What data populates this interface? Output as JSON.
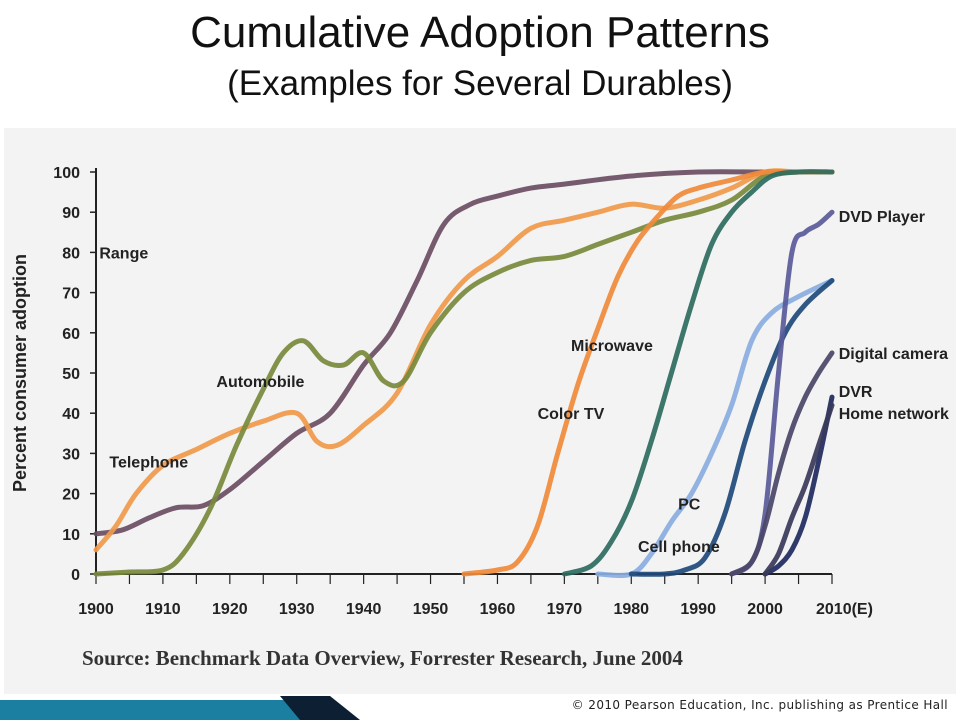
{
  "slide": {
    "title": "Cumulative Adoption Patterns",
    "subtitle": "(Examples for Several Durables)",
    "source": "Source: Benchmark Data Overview, Forrester Research, June 2004",
    "copyright": "© 2010 Pearson Education, Inc. publishing as Prentice Hall"
  },
  "colors": {
    "accent_teal": "#1a7fa0",
    "dark_navy": "#0d1f33"
  },
  "chart_data": {
    "type": "line",
    "title": "",
    "xlabel": "",
    "ylabel": "Percent consumer adoption",
    "xlim": [
      1900,
      2010
    ],
    "ylim": [
      0,
      100
    ],
    "grid": false,
    "x_ticks": [
      1900,
      1910,
      1920,
      1930,
      1940,
      1950,
      1960,
      1970,
      1980,
      1990,
      2000,
      2010
    ],
    "x_tick_labels": [
      "1900",
      "1910",
      "1920",
      "1930",
      "1940",
      "1950",
      "1960",
      "1970",
      "1980",
      "1990",
      "2000",
      "2010(E)"
    ],
    "y_ticks": [
      0,
      10,
      20,
      30,
      40,
      50,
      60,
      70,
      80,
      90,
      100
    ],
    "y_tick_labels": [
      "0",
      "10",
      "20",
      "30",
      "40",
      "50",
      "60",
      "70",
      "80",
      "90",
      "100"
    ],
    "series": [
      {
        "name": "Range",
        "color": "#6b4e64",
        "label_at": [
          1900.5,
          80
        ],
        "label_anchor": "start",
        "x": [
          1900,
          1904,
          1908,
          1912,
          1916,
          1920,
          1925,
          1930,
          1935,
          1940,
          1944,
          1948,
          1952,
          1956,
          1960,
          1965,
          1970,
          1980,
          1990,
          2000,
          2010
        ],
        "y": [
          10,
          11,
          14,
          16.5,
          17,
          21,
          28,
          35,
          40,
          52,
          60,
          73,
          87,
          92,
          94,
          96,
          97,
          99,
          100,
          100,
          100
        ]
      },
      {
        "name": "Telephone",
        "color": "#f09a4a",
        "label_at": [
          1902,
          28
        ],
        "label_anchor": "start",
        "x": [
          1900,
          1903,
          1906,
          1910,
          1915,
          1920,
          1925,
          1930,
          1933,
          1936,
          1940,
          1945,
          1950,
          1955,
          1960,
          1965,
          1970,
          1975,
          1980,
          1985,
          1990,
          1995,
          2000,
          2005,
          2010
        ],
        "y": [
          6,
          12,
          20,
          27,
          31,
          35,
          38,
          40,
          33,
          32,
          37,
          45,
          62,
          73,
          79,
          86,
          88,
          90,
          92,
          91,
          93,
          96,
          100,
          100,
          100
        ]
      },
      {
        "name": "Automobile",
        "color": "#7a8a3c",
        "label_at": [
          1918,
          48
        ],
        "label_anchor": "start",
        "x": [
          1900,
          1905,
          1910,
          1913,
          1917,
          1921,
          1925,
          1928,
          1931,
          1934,
          1937,
          1940,
          1943,
          1946,
          1950,
          1955,
          1960,
          1965,
          1970,
          1975,
          1980,
          1985,
          1990,
          1995,
          2000,
          2005,
          2010
        ],
        "y": [
          0,
          0.5,
          1,
          5,
          16,
          32,
          46,
          55,
          58,
          53,
          52,
          55,
          48,
          48,
          60,
          70,
          75,
          78,
          79,
          82,
          85,
          88,
          90,
          93,
          99,
          100,
          100
        ]
      },
      {
        "name": "Color TV",
        "color": "#f08a3a",
        "label_at": [
          1966,
          40
        ],
        "label_anchor": "start",
        "x": [
          1955,
          1960,
          1963,
          1966,
          1969,
          1972,
          1975,
          1978,
          1981,
          1984,
          1987,
          1990,
          1995,
          2000,
          2005,
          2010
        ],
        "y": [
          0,
          1,
          3,
          12,
          30,
          47,
          61,
          74,
          83,
          89,
          94,
          96,
          98,
          100,
          100,
          100
        ]
      },
      {
        "name": "Microwave",
        "color": "#2e6b5e",
        "label_at": [
          1971,
          57
        ],
        "label_anchor": "start",
        "x": [
          1970,
          1974,
          1977,
          1980,
          1983,
          1986,
          1989,
          1992,
          1995,
          1998,
          2001,
          2005,
          2010
        ],
        "y": [
          0,
          2,
          8,
          18,
          33,
          50,
          67,
          82,
          90,
          95,
          99,
          100,
          100
        ]
      },
      {
        "name": "PC",
        "color": "#8aaee0",
        "label_at": [
          1987,
          17.5
        ],
        "label_anchor": "start",
        "x": [
          1975,
          1980,
          1983,
          1986,
          1989,
          1992,
          1995,
          1998,
          2001,
          2005,
          2010
        ],
        "y": [
          0,
          0,
          5,
          13,
          20,
          30,
          42,
          58,
          65,
          69,
          73
        ]
      },
      {
        "name": "Cell phone",
        "color": "#1f4a7a",
        "label_at": [
          1981,
          7
        ],
        "label_anchor": "start",
        "x": [
          1980,
          1985,
          1988,
          1991,
          1994,
          1997,
          2000,
          2003,
          2006,
          2010
        ],
        "y": [
          0,
          0,
          1,
          4,
          15,
          33,
          48,
          60,
          67,
          73
        ]
      },
      {
        "name": "DVD Player",
        "color": "#5a5a9a",
        "label_at": [
          2011,
          89
        ],
        "label_anchor": "start",
        "x": [
          1995,
          1998,
          2000,
          2002,
          2004,
          2006,
          2008,
          2010
        ],
        "y": [
          0,
          3,
          15,
          50,
          80,
          85,
          87,
          90
        ]
      },
      {
        "name": "Digital camera",
        "color": "#4a4668",
        "label_at": [
          2011,
          55
        ],
        "label_anchor": "start",
        "x": [
          1995,
          1998,
          2000,
          2002,
          2004,
          2006,
          2008,
          2010
        ],
        "y": [
          0,
          3,
          12,
          25,
          36,
          44,
          50,
          55
        ]
      },
      {
        "name": "DVR",
        "color": "#1e2a60",
        "label_at": [
          2011,
          45.5
        ],
        "label_anchor": "start",
        "x": [
          2000,
          2002,
          2004,
          2006,
          2008,
          2010
        ],
        "y": [
          0,
          2,
          6,
          14,
          28,
          44
        ]
      },
      {
        "name": "Home network",
        "color": "#3a3a5a",
        "label_at": [
          2011,
          40
        ],
        "label_anchor": "start",
        "x": [
          2000,
          2002,
          2004,
          2006,
          2008,
          2010
        ],
        "y": [
          0,
          5,
          14,
          22,
          32,
          42
        ]
      }
    ]
  }
}
